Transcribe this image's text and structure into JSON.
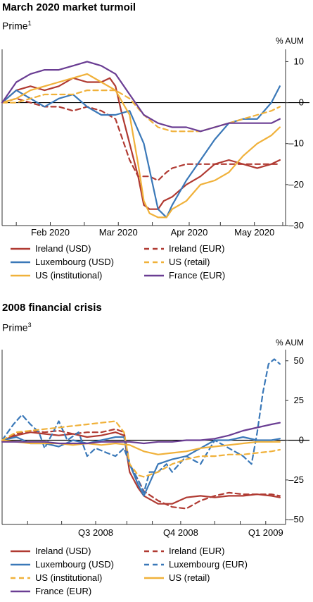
{
  "charts": [
    {
      "title": "March 2020 market turmoil",
      "subtitle": "Prime",
      "footnote_mark": "1",
      "unit_label": "% AUM",
      "x_ticks": [
        "Feb 2020",
        "Mar 2020",
        "Apr 2020",
        "May 2020"
      ],
      "y_ticks": [
        "10",
        "0",
        "–10",
        "–20",
        "–30"
      ],
      "legend": [
        "Ireland (USD)",
        "Ireland (EUR)",
        "Luxembourg (USD)",
        "US (retail)",
        "US (institutional)",
        "France (EUR)"
      ]
    },
    {
      "title": "2008 financial crisis",
      "subtitle": "Prime",
      "footnote_mark": "3",
      "unit_label": "% AUM",
      "x_ticks": [
        "Q3 2008",
        "Q4 2008",
        "Q1 2009"
      ],
      "y_ticks": [
        "50",
        "25",
        "0",
        "–25",
        "–50"
      ],
      "legend": [
        "Ireland (USD)",
        "Ireland (EUR)",
        "Luxembourg (USD)",
        "Luxembourg (EUR)",
        "US (institutional)",
        "US (retail)",
        "France (EUR)"
      ]
    }
  ],
  "chart_data": [
    {
      "type": "line",
      "title": "March 2020 market turmoil",
      "ylabel": "% AUM",
      "ylim": [
        -30,
        13
      ],
      "x_domain": [
        0,
        100
      ],
      "x_ticks": [
        {
          "label": "Feb 2020",
          "x": 17
        },
        {
          "label": "Mar 2020",
          "x": 41
        },
        {
          "label": "Apr 2020",
          "x": 66
        },
        {
          "label": "May 2020",
          "x": 89
        }
      ],
      "series": [
        {
          "name": "Ireland (USD)",
          "color": "#b03a32",
          "dash": false,
          "x": [
            0,
            5,
            10,
            15,
            20,
            25,
            30,
            35,
            38,
            40,
            42,
            45,
            48,
            50,
            52,
            55,
            57,
            60,
            65,
            70,
            75,
            80,
            85,
            90,
            95,
            98
          ],
          "values": [
            0,
            3,
            4,
            3,
            4,
            6,
            5,
            5,
            6,
            4,
            -2,
            -10,
            -18,
            -25,
            -26,
            -26,
            -24,
            -23,
            -20,
            -18,
            -15,
            -14,
            -15,
            -16,
            -15,
            -14
          ]
        },
        {
          "name": "Ireland (EUR)",
          "color": "#b03a32",
          "dash": true,
          "x": [
            0,
            5,
            10,
            15,
            20,
            25,
            30,
            35,
            40,
            42,
            45,
            48,
            50,
            52,
            55,
            58,
            60,
            65,
            70,
            75,
            80,
            85,
            90,
            95,
            98
          ],
          "values": [
            0,
            1,
            0,
            -1,
            -1,
            -2,
            -1,
            -2,
            -4,
            -8,
            -14,
            -18,
            -18,
            -18,
            -19,
            -17,
            -16,
            -15,
            -15,
            -15,
            -15,
            -15,
            -15,
            -15,
            -15
          ]
        },
        {
          "name": "Luxembourg (USD)",
          "color": "#3a78b8",
          "dash": false,
          "x": [
            0,
            5,
            10,
            15,
            20,
            25,
            30,
            35,
            40,
            45,
            50,
            55,
            58,
            60,
            65,
            70,
            75,
            80,
            85,
            90,
            95,
            98
          ],
          "values": [
            0,
            3,
            1,
            -1,
            1,
            2,
            -1,
            -3,
            -3,
            -2,
            -10,
            -26,
            -28,
            -25,
            -19,
            -14,
            -9,
            -5,
            -4,
            -4,
            0,
            4
          ]
        },
        {
          "name": "US (retail)",
          "color": "#f0b13a",
          "dash": true,
          "x": [
            0,
            5,
            10,
            15,
            20,
            25,
            30,
            35,
            40,
            45,
            50,
            55,
            60,
            65,
            70,
            75,
            80,
            85,
            90,
            95,
            98
          ],
          "values": [
            0,
            0,
            1,
            2,
            2,
            2,
            3,
            3,
            3,
            1,
            -3,
            -6,
            -7,
            -7,
            -7,
            -6,
            -5,
            -4,
            -3,
            -2,
            -1
          ]
        },
        {
          "name": "US (institutional)",
          "color": "#f0b13a",
          "dash": false,
          "x": [
            0,
            5,
            10,
            15,
            20,
            25,
            30,
            35,
            40,
            45,
            48,
            50,
            52,
            55,
            58,
            60,
            65,
            70,
            75,
            80,
            85,
            90,
            95,
            98
          ],
          "values": [
            0,
            1,
            3,
            4,
            5,
            6,
            7,
            5,
            3,
            -3,
            -15,
            -24,
            -27,
            -28,
            -28,
            -26,
            -24,
            -20,
            -19,
            -17,
            -13,
            -10,
            -8,
            -6
          ]
        },
        {
          "name": "France (EUR)",
          "color": "#6a3d93",
          "dash": false,
          "x": [
            0,
            5,
            10,
            15,
            20,
            25,
            30,
            35,
            40,
            45,
            50,
            55,
            60,
            65,
            70,
            75,
            80,
            85,
            90,
            95,
            98
          ],
          "values": [
            0,
            5,
            7,
            8,
            8,
            9,
            10,
            9,
            7,
            2,
            -3,
            -5,
            -6,
            -6,
            -7,
            -6,
            -5,
            -5,
            -5,
            -5,
            -4
          ]
        }
      ]
    },
    {
      "type": "line",
      "title": "2008 financial crisis",
      "ylabel": "% AUM",
      "ylim": [
        -53,
        57
      ],
      "x_domain": [
        0,
        100
      ],
      "x_ticks": [
        {
          "label": "Q3 2008",
          "x": 33
        },
        {
          "label": "Q4 2008",
          "x": 63
        },
        {
          "label": "Q1 2009",
          "x": 93
        }
      ],
      "series": [
        {
          "name": "Ireland (USD)",
          "color": "#b03a32",
          "dash": false,
          "x": [
            0,
            5,
            10,
            15,
            20,
            25,
            30,
            35,
            40,
            43,
            45,
            48,
            50,
            55,
            60,
            65,
            70,
            75,
            80,
            85,
            90,
            95,
            98
          ],
          "values": [
            0,
            3,
            5,
            4,
            3,
            4,
            2,
            3,
            5,
            3,
            -20,
            -30,
            -35,
            -40,
            -40,
            -36,
            -35,
            -36,
            -35,
            -35,
            -34,
            -35,
            -36
          ]
        },
        {
          "name": "Ireland (EUR)",
          "color": "#b03a32",
          "dash": true,
          "x": [
            0,
            5,
            10,
            15,
            20,
            25,
            30,
            35,
            40,
            43,
            45,
            48,
            50,
            55,
            60,
            65,
            70,
            75,
            80,
            85,
            90,
            95,
            98
          ],
          "values": [
            0,
            4,
            6,
            5,
            6,
            4,
            5,
            5,
            7,
            5,
            -15,
            -25,
            -32,
            -38,
            -42,
            -43,
            -38,
            -35,
            -33,
            -34,
            -34,
            -34,
            -35
          ]
        },
        {
          "name": "Luxembourg (USD)",
          "color": "#3a78b8",
          "dash": false,
          "x": [
            0,
            5,
            10,
            15,
            20,
            25,
            30,
            35,
            40,
            43,
            45,
            48,
            50,
            55,
            60,
            65,
            70,
            75,
            80,
            85,
            90,
            95,
            98
          ],
          "values": [
            0,
            2,
            -2,
            -2,
            -4,
            0,
            -2,
            0,
            2,
            2,
            -15,
            -28,
            -35,
            -15,
            -12,
            -10,
            -5,
            0,
            0,
            2,
            0,
            0,
            1
          ]
        },
        {
          "name": "Luxembourg (EUR)",
          "color": "#3a78b8",
          "dash": true,
          "x": [
            0,
            4,
            7,
            10,
            13,
            15,
            18,
            20,
            23,
            27,
            30,
            33,
            37,
            40,
            43,
            45,
            48,
            50,
            52,
            55,
            58,
            60,
            65,
            70,
            75,
            80,
            85,
            88,
            90,
            92,
            94,
            96,
            98
          ],
          "values": [
            0,
            10,
            16,
            10,
            5,
            -5,
            5,
            12,
            0,
            5,
            -10,
            -5,
            -8,
            -10,
            -5,
            -15,
            -25,
            -33,
            -20,
            -20,
            -15,
            -20,
            -10,
            -15,
            0,
            -5,
            -10,
            -15,
            5,
            30,
            48,
            51,
            48
          ]
        },
        {
          "name": "US (institutional)",
          "color": "#f0b13a",
          "dash": true,
          "x": [
            0,
            5,
            10,
            15,
            20,
            25,
            30,
            35,
            40,
            43,
            45,
            48,
            50,
            55,
            60,
            65,
            70,
            75,
            80,
            85,
            90,
            95,
            98
          ],
          "values": [
            0,
            5,
            6,
            7,
            8,
            9,
            10,
            11,
            12,
            5,
            -15,
            -22,
            -23,
            -20,
            -15,
            -12,
            -10,
            -10,
            -9,
            -9,
            -8,
            -7,
            -6
          ]
        },
        {
          "name": "US (retail)",
          "color": "#f0b13a",
          "dash": false,
          "x": [
            0,
            5,
            10,
            15,
            20,
            25,
            30,
            35,
            40,
            45,
            50,
            55,
            60,
            65,
            70,
            75,
            80,
            85,
            90,
            95,
            98
          ],
          "values": [
            0,
            -1,
            -2,
            -2,
            -2,
            -3,
            -2,
            -3,
            -2,
            -3,
            -7,
            -9,
            -8,
            -7,
            -5,
            -4,
            -3,
            -2,
            -1,
            -1,
            -1
          ]
        },
        {
          "name": "France (EUR)",
          "color": "#6a3d93",
          "dash": false,
          "x": [
            0,
            5,
            10,
            15,
            20,
            25,
            30,
            35,
            40,
            45,
            50,
            55,
            60,
            65,
            70,
            75,
            80,
            85,
            90,
            95,
            98
          ],
          "values": [
            -1,
            -1,
            -1,
            -1,
            -2,
            -2,
            -2,
            -1,
            -1,
            -1,
            -2,
            -1,
            -1,
            0,
            0,
            1,
            3,
            6,
            8,
            10,
            11
          ]
        }
      ]
    }
  ]
}
